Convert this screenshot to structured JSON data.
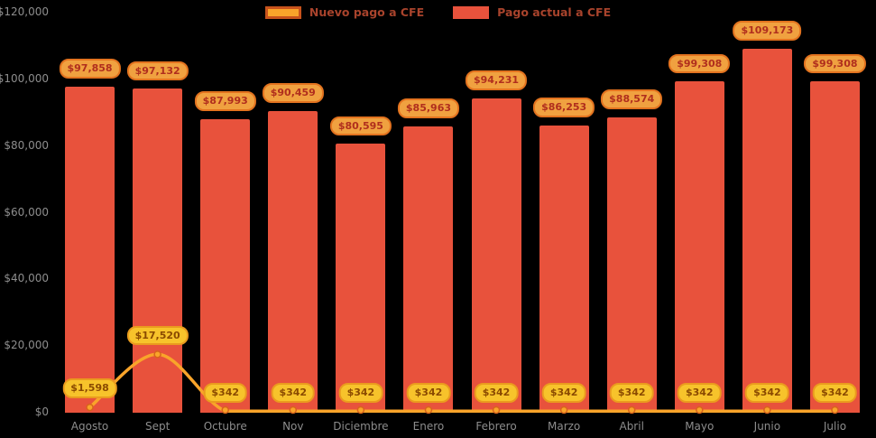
{
  "chart_data": {
    "type": "bar",
    "title": "",
    "categories": [
      "Agosto",
      "Sept",
      "Octubre",
      "Nov",
      "Diciembre",
      "Enero",
      "Febrero",
      "Marzo",
      "Abril",
      "Mayo",
      "Junio",
      "Julio"
    ],
    "series": [
      {
        "key": "nuevo-pago",
        "name": "Nuevo pago a CFE",
        "type": "line",
        "color": "#f9a42a",
        "point_border": "#d8641c",
        "values": [
          1598,
          17520,
          342,
          342,
          342,
          342,
          342,
          342,
          342,
          342,
          342,
          342
        ],
        "labels": [
          "$1,598",
          "$17,520",
          "$342",
          "$342",
          "$342",
          "$342",
          "$342",
          "$342",
          "$342",
          "$342",
          "$342",
          "$342"
        ]
      },
      {
        "key": "pago-actual",
        "name": "Pago actual a CFE",
        "type": "bar",
        "color": "#e8523c",
        "values": [
          97858,
          97132,
          87993,
          90459,
          80595,
          85963,
          94231,
          86253,
          88574,
          99308,
          109173,
          99308
        ],
        "labels": [
          "$97,858",
          "$97,132",
          "$87,993",
          "$90,459",
          "$80,595",
          "$85,963",
          "$94,231",
          "$86,253",
          "$88,574",
          "$99,308",
          "$109,173",
          "$99,308"
        ]
      }
    ],
    "xlabel": "",
    "ylabel": "",
    "ylim": [
      0,
      120000
    ],
    "yticks": [
      0,
      20000,
      40000,
      60000,
      80000,
      100000,
      120000
    ],
    "ytick_labels": [
      "$0",
      "$20,000",
      "$40,000",
      "$60,000",
      "$80,000",
      "$100,000",
      "$120,000"
    ],
    "grid": false,
    "legend_position": "top"
  },
  "legend": {
    "items": [
      {
        "key": "nuevo-pago",
        "label": "Nuevo pago a CFE",
        "swatch_color": "#f9a42a",
        "swatch_border": "#c8531c",
        "label_color": "#a8432c"
      },
      {
        "key": "pago-actual",
        "label": "Pago actual a CFE",
        "swatch_color": "#e8523c",
        "swatch_border": "",
        "label_color": "#a8432c"
      }
    ]
  },
  "colors": {
    "background": "#000000",
    "axis_text": "#8d8d8d",
    "bar": "#e8523c",
    "line": "#f9a42a",
    "bar_badge_bg": "#f0a140",
    "bar_badge_border": "#e3731f",
    "bar_badge_text": "#b02e1d",
    "line_badge_bg": "#f7c32b",
    "line_badge_border": "#ea9b1e",
    "line_badge_text": "#8a4a00"
  }
}
